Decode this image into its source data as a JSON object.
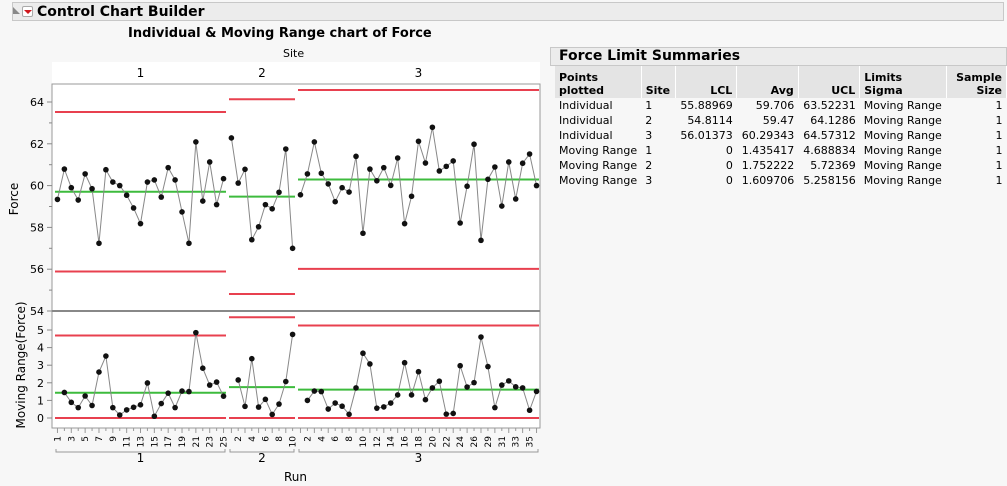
{
  "header": {
    "title": "Control Chart Builder"
  },
  "chart_title": "Individual & Moving Range chart of Force",
  "summary": {
    "title": "Force Limit Summaries",
    "columns": [
      "Points plotted",
      "Site",
      "LCL",
      "Avg",
      "UCL",
      "Limits Sigma",
      "Sample Size"
    ],
    "rows": [
      [
        "Individual",
        "1",
        "55.88969",
        "59.706",
        "63.52231",
        "Moving Range",
        "1"
      ],
      [
        "Individual",
        "2",
        "54.8114",
        "59.47",
        "64.1286",
        "Moving Range",
        "1"
      ],
      [
        "Individual",
        "3",
        "56.01373",
        "60.29343",
        "64.57312",
        "Moving Range",
        "1"
      ],
      [
        "Moving Range",
        "1",
        "0",
        "1.435417",
        "4.688834",
        "Moving Range",
        "1"
      ],
      [
        "Moving Range",
        "2",
        "0",
        "1.752222",
        "5.72369",
        "Moving Range",
        "1"
      ],
      [
        "Moving Range",
        "3",
        "0",
        "1.609706",
        "5.258156",
        "Moving Range",
        "1"
      ]
    ]
  },
  "chart_data": {
    "type": "line",
    "group_label": "Site",
    "xlabel": "Run",
    "colors": {
      "limit": "#e8404f",
      "center": "#3dbb3d",
      "line": "#888888",
      "point": "#111111"
    },
    "individual": {
      "ylabel": "Force",
      "ylim": [
        54,
        65
      ],
      "yticks": [
        "54",
        "56",
        "58",
        "60",
        "62",
        "64"
      ]
    },
    "moving_range": {
      "ylabel": "Moving Range(Force)",
      "ylim": [
        -0.4,
        6.03
      ],
      "yticks": [
        "0",
        "1",
        "2",
        "3",
        "4",
        "5"
      ]
    },
    "sites": [
      {
        "name": "1",
        "lcl": 55.88969,
        "avg": 59.706,
        "ucl": 63.52231,
        "mr_avg": 1.435417,
        "mr_ucl": 4.688834,
        "xticks": [
          "1",
          "3",
          "5",
          "7",
          "9",
          "11",
          "13",
          "15",
          "17",
          "19",
          "21",
          "23",
          "25"
        ],
        "values": [
          59.34,
          60.79,
          59.9,
          59.31,
          60.56,
          59.85,
          57.24,
          60.76,
          60.17,
          60.0,
          59.54,
          58.93,
          58.18,
          60.17,
          60.27,
          59.45,
          60.86,
          60.27,
          58.74,
          57.24,
          62.09,
          59.26,
          61.13,
          59.09,
          60.33
        ]
      },
      {
        "name": "2",
        "lcl": 54.8114,
        "avg": 59.47,
        "ucl": 64.1286,
        "mr_avg": 1.752222,
        "mr_ucl": 5.72369,
        "xticks": [
          "2",
          "4",
          "6",
          "8",
          "10"
        ],
        "values": [
          62.28,
          60.12,
          60.78,
          57.41,
          58.03,
          59.09,
          58.89,
          59.68,
          61.75,
          57.0
        ]
      },
      {
        "name": "3",
        "lcl": 56.01373,
        "avg": 60.29343,
        "ucl": 64.57312,
        "mr_avg": 1.609706,
        "mr_ucl": 5.258156,
        "xticks": [
          "2",
          "4",
          "6",
          "8",
          "10",
          "12",
          "14",
          "16",
          "18",
          "20",
          "22",
          "24",
          "26",
          "29",
          "31",
          "33",
          "35"
        ],
        "values": [
          59.56,
          60.56,
          62.09,
          60.59,
          60.08,
          59.23,
          59.9,
          59.69,
          61.4,
          57.72,
          60.79,
          60.23,
          60.86,
          60.01,
          61.32,
          58.18,
          59.49,
          62.12,
          61.08,
          62.79,
          60.7,
          60.92,
          61.18,
          58.21,
          59.97,
          61.98,
          57.38,
          60.3,
          60.89,
          59.02,
          61.13,
          59.36,
          61.07,
          61.51,
          60.0
        ]
      }
    ]
  }
}
